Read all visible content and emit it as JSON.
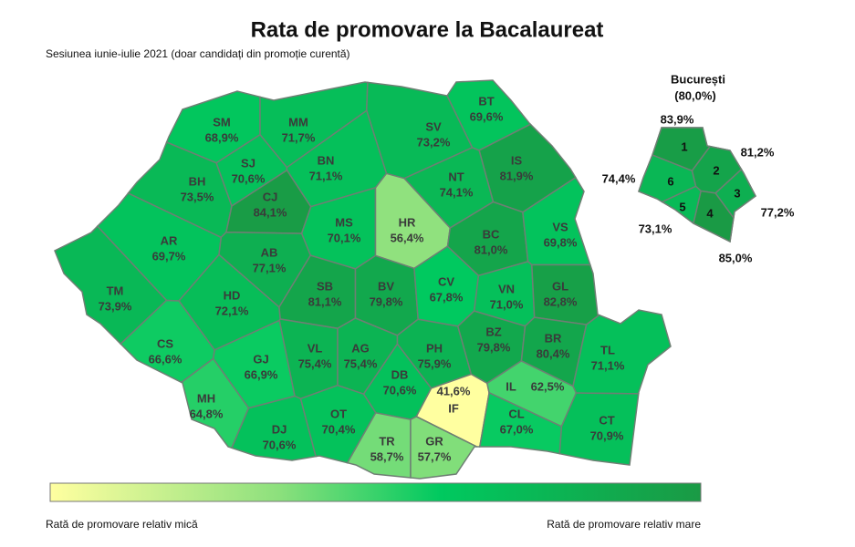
{
  "title": "Rata de promovare la Bacalaureat",
  "subtitle": "Sesiunea iunie-iulie 2021 (doar candidați din promoție curentă)",
  "counties": [
    {
      "code": "SM",
      "value": 68.9,
      "label": "68,9%"
    },
    {
      "code": "MM",
      "value": 71.7,
      "label": "71,7%"
    },
    {
      "code": "BT",
      "value": 69.6,
      "label": "69,6%"
    },
    {
      "code": "SV",
      "value": 73.2,
      "label": "73,2%"
    },
    {
      "code": "BH",
      "value": 73.5,
      "label": "73,5%"
    },
    {
      "code": "SJ",
      "value": 70.6,
      "label": "70,6%"
    },
    {
      "code": "CJ",
      "value": 84.1,
      "label": "84,1%"
    },
    {
      "code": "BN",
      "value": 71.1,
      "label": "71,1%"
    },
    {
      "code": "IS",
      "value": 81.9,
      "label": "81,9%"
    },
    {
      "code": "NT",
      "value": 74.1,
      "label": "74,1%"
    },
    {
      "code": "AR",
      "value": 69.7,
      "label": "69,7%"
    },
    {
      "code": "MS",
      "value": 70.1,
      "label": "70,1%"
    },
    {
      "code": "HR",
      "value": 56.4,
      "label": "56,4%"
    },
    {
      "code": "BC",
      "value": 81.0,
      "label": "81,0%"
    },
    {
      "code": "VS",
      "value": 69.8,
      "label": "69,8%"
    },
    {
      "code": "AB",
      "value": 77.1,
      "label": "77,1%"
    },
    {
      "code": "TM",
      "value": 73.9,
      "label": "73,9%"
    },
    {
      "code": "HD",
      "value": 72.1,
      "label": "72,1%"
    },
    {
      "code": "SB",
      "value": 81.1,
      "label": "81,1%"
    },
    {
      "code": "BV",
      "value": 79.8,
      "label": "79,8%"
    },
    {
      "code": "CV",
      "value": 67.8,
      "label": "67,8%"
    },
    {
      "code": "VN",
      "value": 71.0,
      "label": "71,0%"
    },
    {
      "code": "GL",
      "value": 82.8,
      "label": "82,8%"
    },
    {
      "code": "CS",
      "value": 66.6,
      "label": "66,6%"
    },
    {
      "code": "GJ",
      "value": 66.9,
      "label": "66,9%"
    },
    {
      "code": "VL",
      "value": 75.4,
      "label": "75,4%"
    },
    {
      "code": "AG",
      "value": 75.4,
      "label": "75,4%"
    },
    {
      "code": "PH",
      "value": 75.9,
      "label": "75,9%"
    },
    {
      "code": "BZ",
      "value": 79.8,
      "label": "79,8%"
    },
    {
      "code": "BR",
      "value": 80.4,
      "label": "80,4%"
    },
    {
      "code": "TL",
      "value": 71.1,
      "label": "71,1%"
    },
    {
      "code": "MH",
      "value": 64.8,
      "label": "64,8%"
    },
    {
      "code": "DB",
      "value": 70.6,
      "label": "70,6%"
    },
    {
      "code": "IF",
      "value": 41.6,
      "label": "41,6%"
    },
    {
      "code": "IL",
      "value": 62.5,
      "label": "62,5%"
    },
    {
      "code": "DJ",
      "value": 70.6,
      "label": "70,6%"
    },
    {
      "code": "OT",
      "value": 70.4,
      "label": "70,4%"
    },
    {
      "code": "TR",
      "value": 58.7,
      "label": "58,7%"
    },
    {
      "code": "GR",
      "value": 57.7,
      "label": "57,7%"
    },
    {
      "code": "CL",
      "value": 67.0,
      "label": "67,0%"
    },
    {
      "code": "CT",
      "value": 70.9,
      "label": "70,9%"
    }
  ],
  "bucharest": {
    "name": "București",
    "value": 80.0,
    "label": "(80,0%)",
    "sectors": [
      {
        "name": "1",
        "value": 83.9,
        "label": "83,9%"
      },
      {
        "name": "2",
        "value": 81.2,
        "label": "81,2%"
      },
      {
        "name": "3",
        "value": 77.2,
        "label": "77,2%"
      },
      {
        "name": "4",
        "value": 85.0,
        "label": "85,0%"
      },
      {
        "name": "5",
        "value": 73.1,
        "label": "73,1%"
      },
      {
        "name": "6",
        "value": 74.4,
        "label": "74,4%"
      }
    ]
  },
  "legend": {
    "low": "Rată de promovare relativ mică",
    "high": "Rată de promovare relativ mare"
  }
}
